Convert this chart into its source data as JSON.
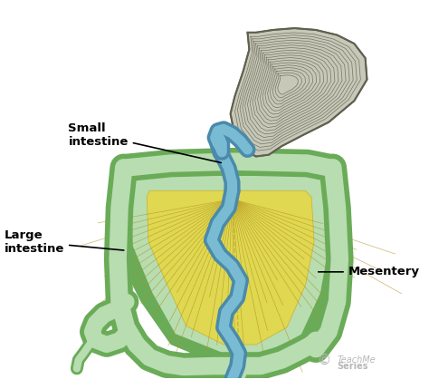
{
  "background_color": "#ffffff",
  "labels": {
    "small_intestine": "Small\nintestine",
    "large_intestine": "Large\nintestine",
    "mesentery": "Mesentery"
  },
  "colors": {
    "mesentery_light": "#b8ddb0",
    "mesentery_mid": "#8dc87a",
    "mesentery_dark": "#6aab58",
    "si_fill": "#7abbd4",
    "si_border": "#4a8aaa",
    "stomach_fill": "#c8c8b8",
    "stomach_border": "#606050",
    "yellow_fill": "#e0d850",
    "yellow_line": "#b8a030",
    "label_color": "#000000",
    "watermark_color": "#b0b0b0"
  },
  "figsize": [
    4.74,
    4.29
  ],
  "dpi": 100
}
